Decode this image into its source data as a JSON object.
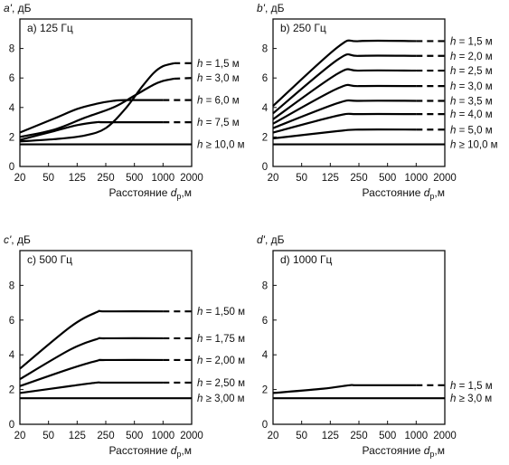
{
  "chart_data": [
    {
      "id": "a",
      "type": "line",
      "ylabel_letter": "a'",
      "ylabel_unit": ", дБ",
      "title": "a) 125 Гц",
      "xlabel_prefix": "Расстояние ",
      "xlabel_var": "d",
      "xlabel_sub": "p",
      "xlabel_suffix": ",м",
      "x_ticks": [
        20,
        50,
        125,
        250,
        500,
        1000,
        2000
      ],
      "y_ticks": [
        0,
        2,
        4,
        6,
        8
      ],
      "ylim": [
        0,
        10
      ],
      "xlim": [
        20,
        2000
      ],
      "series": [
        {
          "name": "h = 1,5 м",
          "x": [
            20,
            60,
            150,
            250,
            400,
            600,
            800,
            1000,
            1300,
            2000
          ],
          "y": [
            1.7,
            1.85,
            2.1,
            2.6,
            3.9,
            5.4,
            6.35,
            6.8,
            7.0,
            7.0
          ],
          "dashed_from": 1300
        },
        {
          "name": "h = 3,0 м",
          "x": [
            20,
            60,
            150,
            300,
            500,
            800,
            1000,
            1300,
            2000
          ],
          "y": [
            2.0,
            2.5,
            3.3,
            4.0,
            4.8,
            5.55,
            5.8,
            5.95,
            6.0
          ],
          "dashed_from": 1300
        },
        {
          "name": "h = 6,0 м",
          "x": [
            20,
            60,
            125,
            200,
            300,
            400,
            1000,
            2000
          ],
          "y": [
            2.3,
            3.25,
            3.9,
            4.25,
            4.45,
            4.5,
            4.5,
            4.5
          ],
          "dashed_from": 1000
        },
        {
          "name": "h = 7,5 м",
          "x": [
            20,
            60,
            125,
            200,
            250,
            1000,
            2000
          ],
          "y": [
            1.8,
            2.4,
            2.8,
            3.0,
            3.0,
            3.0,
            3.0
          ],
          "dashed_from": 1000
        },
        {
          "name": "h ≥ 10,0 м",
          "x": [
            20,
            2000
          ],
          "y": [
            1.5,
            1.5
          ],
          "dashed_from": null
        }
      ]
    },
    {
      "id": "b",
      "type": "line",
      "ylabel_letter": "b'",
      "ylabel_unit": ", дБ",
      "title": "b) 250 Гц",
      "xlabel_prefix": "Расстояние ",
      "xlabel_var": "d",
      "xlabel_sub": "p",
      "xlabel_suffix": ",м",
      "x_ticks": [
        20,
        50,
        125,
        250,
        500,
        1000,
        2000
      ],
      "y_ticks": [
        0,
        2,
        4,
        6,
        8
      ],
      "ylim": [
        0,
        10
      ],
      "xlim": [
        20,
        2000
      ],
      "series": [
        {
          "name": "h = 1,5 м",
          "x": [
            20,
            150,
            250,
            1000,
            2000
          ],
          "y": [
            4.1,
            8.1,
            8.5,
            8.5,
            8.5
          ],
          "dashed_from": 1000
        },
        {
          "name": "h = 2,0 м",
          "x": [
            20,
            150,
            250,
            1000,
            2000
          ],
          "y": [
            3.6,
            7.25,
            7.5,
            7.5,
            7.5
          ],
          "dashed_from": 1000
        },
        {
          "name": "h = 2,5 м",
          "x": [
            20,
            150,
            250,
            1000,
            2000
          ],
          "y": [
            3.2,
            6.3,
            6.5,
            6.5,
            6.5
          ],
          "dashed_from": 1000
        },
        {
          "name": "h = 3,0 м",
          "x": [
            20,
            150,
            250,
            1000,
            2000
          ],
          "y": [
            2.9,
            5.3,
            5.45,
            5.45,
            5.45
          ],
          "dashed_from": 1000
        },
        {
          "name": "h = 3,5 м",
          "x": [
            20,
            150,
            250,
            1000,
            2000
          ],
          "y": [
            2.6,
            4.3,
            4.45,
            4.45,
            4.45
          ],
          "dashed_from": 1000
        },
        {
          "name": "h = 4,0 м",
          "x": [
            20,
            150,
            250,
            1000,
            2000
          ],
          "y": [
            2.3,
            3.45,
            3.55,
            3.55,
            3.55
          ],
          "dashed_from": 1000
        },
        {
          "name": "h = 5,0 м",
          "x": [
            20,
            150,
            250,
            1000,
            2000
          ],
          "y": [
            1.9,
            2.4,
            2.5,
            2.5,
            2.5
          ],
          "dashed_from": 1000
        },
        {
          "name": "h ≥ 10,0 м",
          "x": [
            20,
            2000
          ],
          "y": [
            1.5,
            1.5
          ],
          "dashed_from": null
        }
      ]
    },
    {
      "id": "c",
      "type": "line",
      "ylabel_letter": "c'",
      "ylabel_unit": ", дБ",
      "title": "c) 500 Гц",
      "xlabel_prefix": "Расстояние ",
      "xlabel_var": "d",
      "xlabel_sub": "p",
      "xlabel_suffix": ",м",
      "x_ticks": [
        20,
        50,
        125,
        250,
        500,
        1000,
        2000
      ],
      "y_ticks": [
        0,
        2,
        4,
        6,
        8
      ],
      "ylim": [
        0,
        10
      ],
      "xlim": [
        20,
        2000
      ],
      "series": [
        {
          "name": "h = 1,50 м",
          "x": [
            20,
            100,
            200,
            250,
            1000,
            2000
          ],
          "y": [
            3.2,
            5.6,
            6.45,
            6.5,
            6.5,
            6.5
          ],
          "dashed_from": 1000
        },
        {
          "name": "h = 1,75 м",
          "x": [
            20,
            100,
            200,
            250,
            1000,
            2000
          ],
          "y": [
            2.6,
            4.3,
            4.9,
            4.95,
            4.95,
            4.95
          ],
          "dashed_from": 1000
        },
        {
          "name": "h = 2,00 м",
          "x": [
            20,
            100,
            200,
            250,
            1000,
            2000
          ],
          "y": [
            2.2,
            3.2,
            3.65,
            3.7,
            3.7,
            3.7
          ],
          "dashed_from": 1000
        },
        {
          "name": "h = 2,50 м",
          "x": [
            20,
            100,
            200,
            250,
            1000,
            2000
          ],
          "y": [
            1.8,
            2.2,
            2.4,
            2.4,
            2.4,
            2.4
          ],
          "dashed_from": 1000
        },
        {
          "name": "h ≥ 3,00 м",
          "x": [
            20,
            2000
          ],
          "y": [
            1.5,
            1.5
          ],
          "dashed_from": null
        }
      ]
    },
    {
      "id": "d",
      "type": "line",
      "ylabel_letter": "d'",
      "ylabel_unit": ", дБ",
      "title": "d) 1000 Гц",
      "xlabel_prefix": "Расстояние ",
      "xlabel_var": "d",
      "xlabel_sub": "p",
      "xlabel_suffix": ",м",
      "x_ticks": [
        20,
        50,
        125,
        250,
        500,
        1000,
        2000
      ],
      "y_ticks": [
        0,
        2,
        4,
        6,
        8
      ],
      "ylim": [
        0,
        10
      ],
      "xlim": [
        20,
        2000
      ],
      "series": [
        {
          "name": "h = 1,5 м",
          "x": [
            20,
            100,
            200,
            250,
            1000,
            2000
          ],
          "y": [
            1.8,
            2.05,
            2.25,
            2.25,
            2.25,
            2.25
          ],
          "dashed_from": 1000
        },
        {
          "name": "h ≥ 3,0 м",
          "x": [
            20,
            2000
          ],
          "y": [
            1.5,
            1.5
          ],
          "dashed_from": null
        }
      ]
    }
  ]
}
